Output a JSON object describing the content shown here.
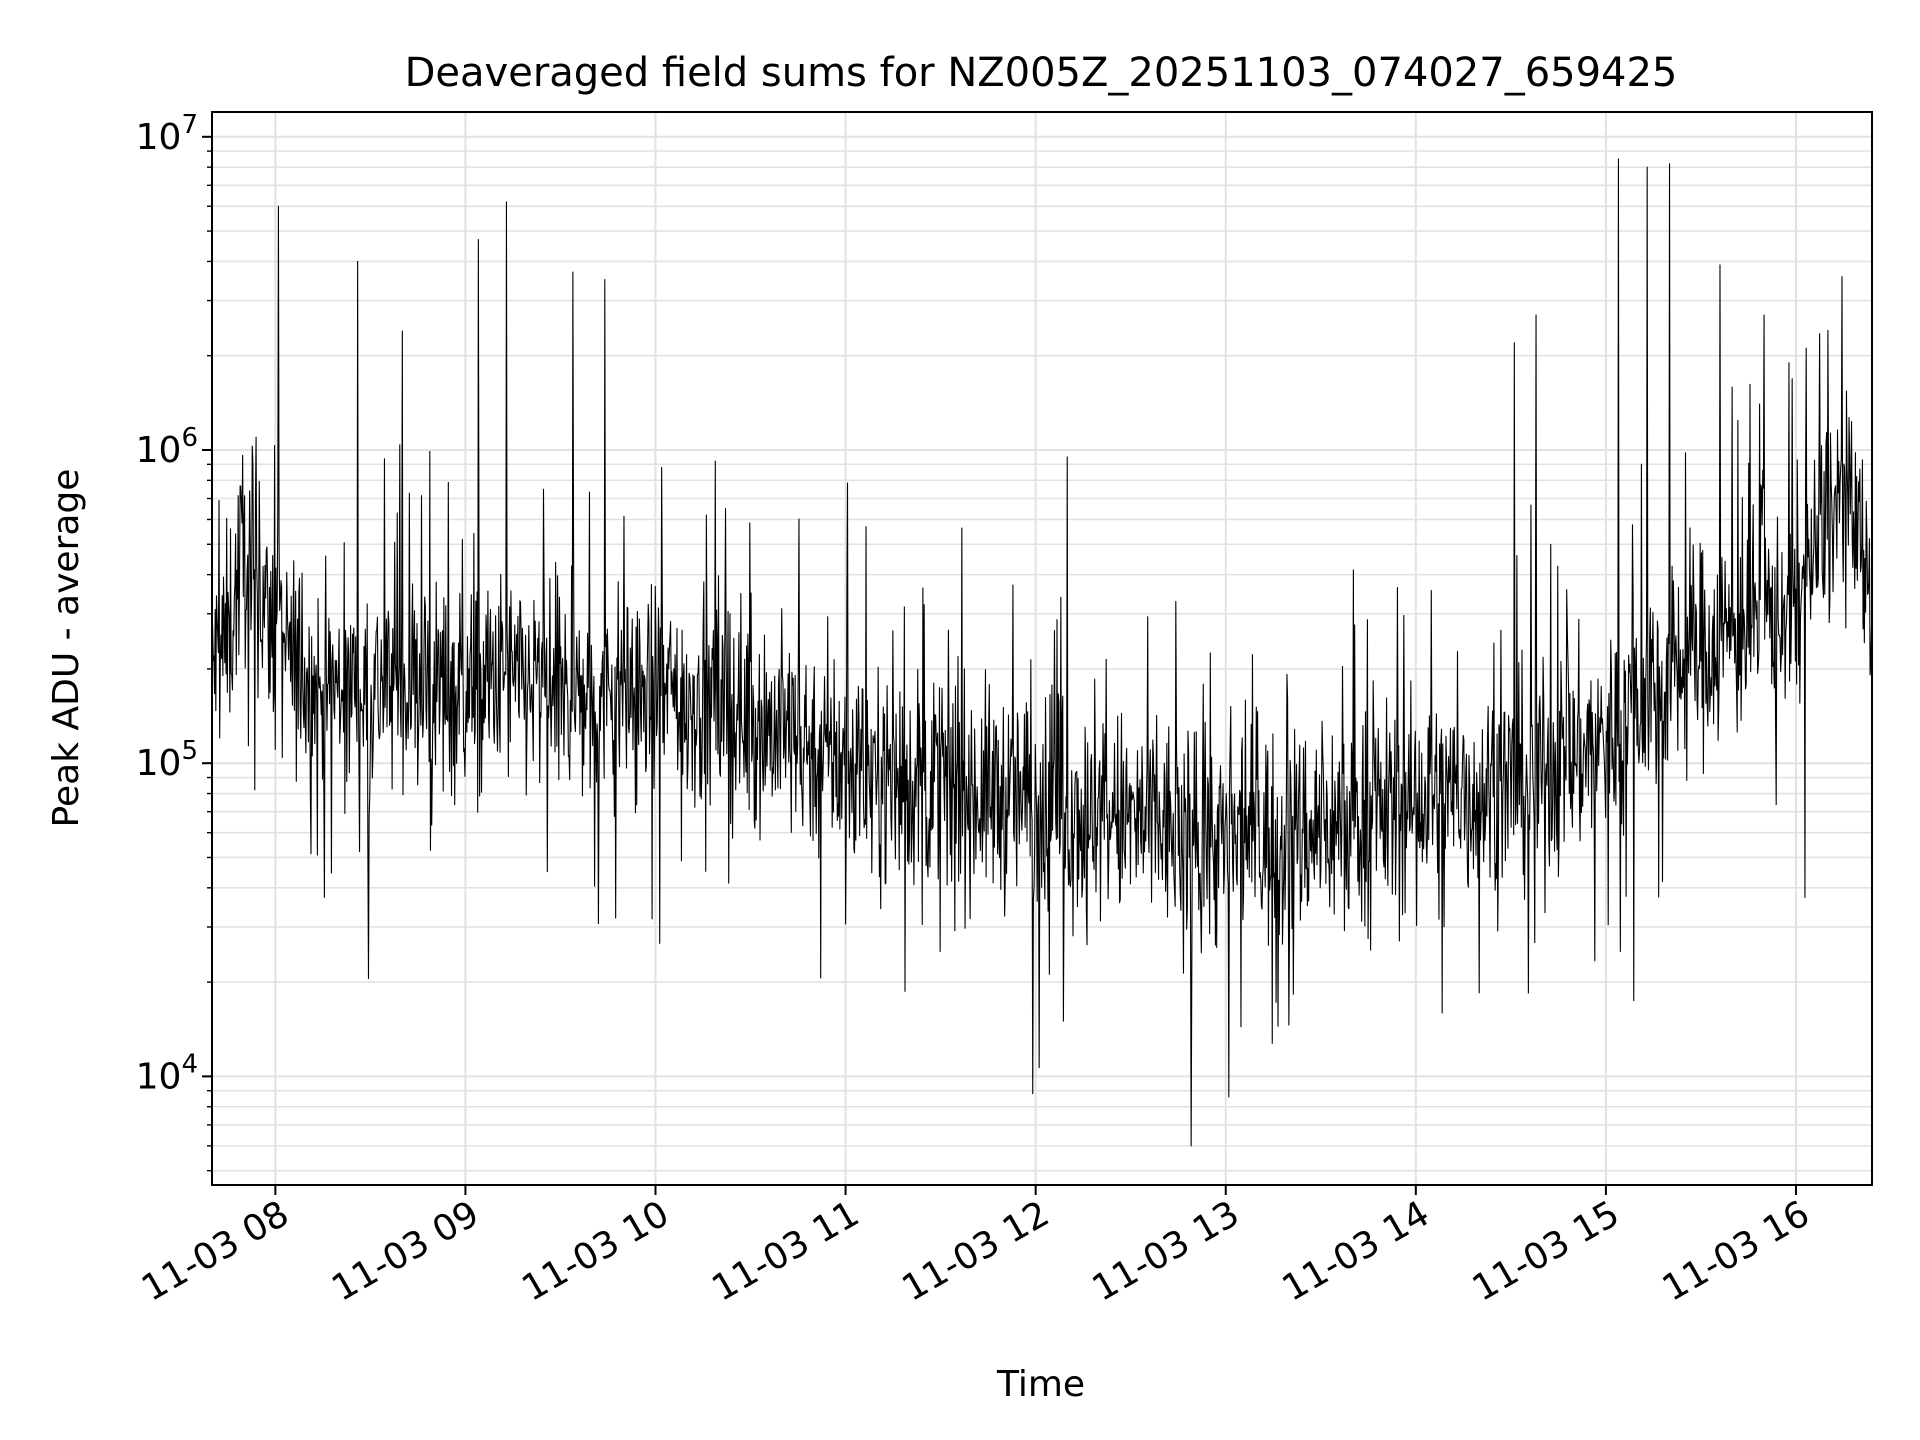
{
  "chart_data": {
    "type": "line",
    "title": "Deaveraged field sums for NZ005Z_20251103_074027_659425",
    "xlabel": "Time",
    "ylabel": "Peak ADU - average",
    "y_scale": "log",
    "ylim": [
      4500,
      12000000
    ],
    "xlim": [
      "2025-11-03 07:40",
      "2025-11-03 16:24"
    ],
    "x_ticks": [
      "11-03 08",
      "11-03 09",
      "11-03 10",
      "11-03 11",
      "11-03 12",
      "11-03 13",
      "11-03 14",
      "11-03 15",
      "11-03 16"
    ],
    "y_ticks": [
      {
        "base": "10",
        "exp": "4",
        "value": 10000
      },
      {
        "base": "10",
        "exp": "5",
        "value": 100000
      },
      {
        "base": "10",
        "exp": "6",
        "value": 1000000
      },
      {
        "base": "10",
        "exp": "7",
        "value": 10000000
      }
    ],
    "grid": true,
    "line_color": "#000000",
    "series": [
      {
        "x": [
          "2025-11-03 07:40",
          "2025-11-03 07:45",
          "2025-11-03 07:50",
          "2025-11-03 07:55",
          "2025-11-03 08:00",
          "2025-11-03 08:10",
          "2025-11-03 08:20",
          "2025-11-03 08:30",
          "2025-11-03 08:40",
          "2025-11-03 08:50",
          "2025-11-03 09:00",
          "2025-11-03 09:10",
          "2025-11-03 09:20",
          "2025-11-03 09:30",
          "2025-11-03 09:40",
          "2025-11-03 09:50",
          "2025-11-03 10:00",
          "2025-11-03 10:15",
          "2025-11-03 10:30",
          "2025-11-03 10:45",
          "2025-11-03 11:00",
          "2025-11-03 11:15",
          "2025-11-03 11:30",
          "2025-11-03 11:45",
          "2025-11-03 12:00",
          "2025-11-03 12:15",
          "2025-11-03 12:30",
          "2025-11-03 12:45",
          "2025-11-03 13:00",
          "2025-11-03 13:15",
          "2025-11-03 13:30",
          "2025-11-03 13:45",
          "2025-11-03 14:00",
          "2025-11-03 14:15",
          "2025-11-03 14:30",
          "2025-11-03 14:45",
          "2025-11-03 15:00",
          "2025-11-03 15:15",
          "2025-11-03 15:30",
          "2025-11-03 15:45",
          "2025-11-03 16:00",
          "2025-11-03 16:10",
          "2025-11-03 16:15",
          "2025-11-03 16:24"
        ],
        "y": [
          200000,
          250000,
          500000,
          350000,
          250000,
          180000,
          170000,
          175000,
          180000,
          175000,
          170000,
          180000,
          175000,
          165000,
          160000,
          165000,
          170000,
          155000,
          140000,
          120000,
          100000,
          90000,
          85000,
          80000,
          75000,
          70000,
          65000,
          60000,
          55000,
          58000,
          62000,
          68000,
          75000,
          80000,
          85000,
          100000,
          120000,
          180000,
          230000,
          280000,
          320000,
          600000,
          700000,
          350000
        ]
      }
    ],
    "spikes": [
      {
        "x": "2025-11-03 08:01",
        "y": 6000000
      },
      {
        "x": "2025-11-03 08:26",
        "y": 4000000
      },
      {
        "x": "2025-11-03 08:40",
        "y": 2400000
      },
      {
        "x": "2025-11-03 09:04",
        "y": 4700000
      },
      {
        "x": "2025-11-03 09:13",
        "y": 6200000
      },
      {
        "x": "2025-11-03 09:34",
        "y": 3700000
      },
      {
        "x": "2025-11-03 09:44",
        "y": 3500000
      },
      {
        "x": "2025-11-03 12:10",
        "y": 950000
      },
      {
        "x": "2025-11-03 14:31",
        "y": 2200000
      },
      {
        "x": "2025-11-03 14:38",
        "y": 2700000
      },
      {
        "x": "2025-11-03 15:04",
        "y": 8500000
      },
      {
        "x": "2025-11-03 15:13",
        "y": 8000000
      },
      {
        "x": "2025-11-03 15:20",
        "y": 8200000
      },
      {
        "x": "2025-11-03 15:36",
        "y": 3900000
      },
      {
        "x": "2025-11-03 15:50",
        "y": 2700000
      }
    ],
    "dips": [
      {
        "x": "2025-11-03 11:59",
        "y": 8800
      },
      {
        "x": "2025-11-03 12:49",
        "y": 6000
      },
      {
        "x": "2025-11-03 13:01",
        "y": 8600
      }
    ]
  }
}
